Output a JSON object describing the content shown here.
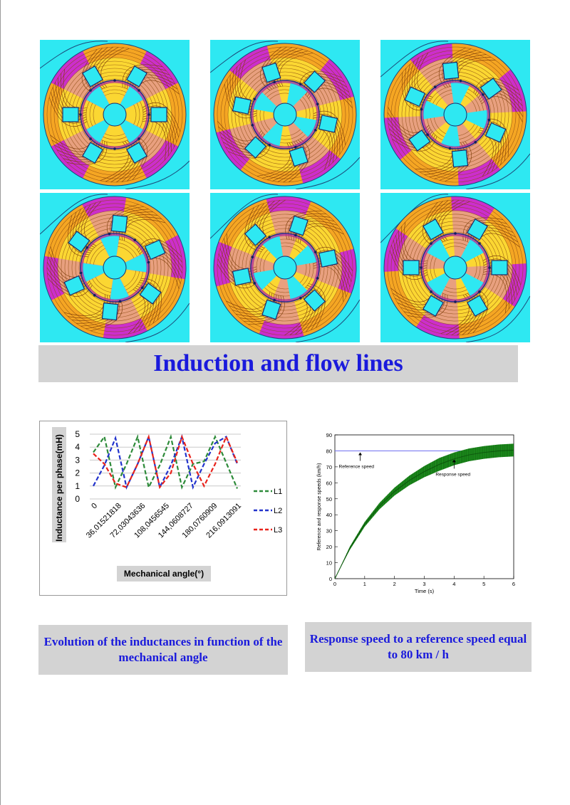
{
  "banners": {
    "main": "Induction and flow lines",
    "left": "Evolution of the inductances in function of the mechanical angle",
    "right": "Response speed to a reference speed equal to 80 km / h"
  },
  "colors": {
    "title_text": "#1a1adc",
    "banner_bg": "#d3d3d3",
    "fem_background": "#2ee8f2",
    "flux_high": "#cc2ecc",
    "flux_mid": "#f5a623",
    "flux_low": "#ffff40"
  },
  "fem_panels": [
    {
      "rotation_deg": 0
    },
    {
      "rotation_deg": 12
    },
    {
      "rotation_deg": 24
    },
    {
      "rotation_deg": 36
    },
    {
      "rotation_deg": 48
    },
    {
      "rotation_deg": 60
    }
  ],
  "chart_data": [
    {
      "type": "line",
      "ylabel": "Inductance per phase(mH)",
      "xlabel": "Mechanical angle(°)",
      "ylim": [
        0,
        5
      ],
      "yticks": [
        0,
        1,
        2,
        3,
        4,
        5
      ],
      "x": [
        0,
        18,
        36,
        54,
        72,
        90,
        108,
        126,
        144,
        162,
        180,
        198,
        216,
        234
      ],
      "xtick_labels": [
        "0",
        "36,01521818",
        "72,03043636",
        "108,0456545",
        "144,0608727",
        "180,0760909",
        "216,0913091"
      ],
      "series": [
        {
          "name": "L1",
          "color": "#2e8b3a",
          "values": [
            3.6,
            4.8,
            0.9,
            2.7,
            4.8,
            0.9,
            2.6,
            4.8,
            0.9,
            2.7,
            2.9,
            4.8,
            2.8,
            0.8
          ]
        },
        {
          "name": "L2",
          "color": "#2233cc",
          "values": [
            1.0,
            2.6,
            4.7,
            0.9,
            2.7,
            4.8,
            0.9,
            2.6,
            4.8,
            0.9,
            2.7,
            4.3,
            4.8,
            2.7
          ]
        },
        {
          "name": "L3",
          "color": "#e8231c",
          "values": [
            3.5,
            2.7,
            1.2,
            0.9,
            2.7,
            4.8,
            0.9,
            2.0,
            4.8,
            2.7,
            1.0,
            2.7,
            4.8,
            2.8
          ]
        }
      ],
      "grid": true,
      "legend": "right"
    },
    {
      "type": "line",
      "title": "",
      "xlabel": "Time (s)",
      "ylabel": "Reference and response speeds (km/h)",
      "xlim": [
        0,
        6
      ],
      "ylim": [
        0,
        90
      ],
      "xticks": [
        0,
        1,
        2,
        3,
        4,
        5,
        6
      ],
      "yticks": [
        0,
        10,
        20,
        30,
        40,
        50,
        60,
        70,
        80,
        90
      ],
      "reference_speed": 80,
      "response": {
        "x": [
          0,
          0.5,
          1,
          1.5,
          2,
          2.5,
          3,
          3.5,
          4,
          4.5,
          5,
          5.5,
          6
        ],
        "y": [
          0,
          19,
          34,
          45.5,
          54.5,
          61.5,
          67,
          71.5,
          75,
          77.5,
          79,
          80,
          80.5
        ],
        "ripple_amplitude": [
          0,
          1,
          1.5,
          2,
          2.5,
          3,
          3.5,
          4,
          4,
          4,
          4,
          4,
          4
        ]
      },
      "series": [
        {
          "name": "Reference speed",
          "color": "#7070f0"
        },
        {
          "name": "Response speed",
          "color": "#1c8a1c"
        }
      ],
      "annotations": [
        "Reference speed",
        "Response speed"
      ]
    }
  ]
}
